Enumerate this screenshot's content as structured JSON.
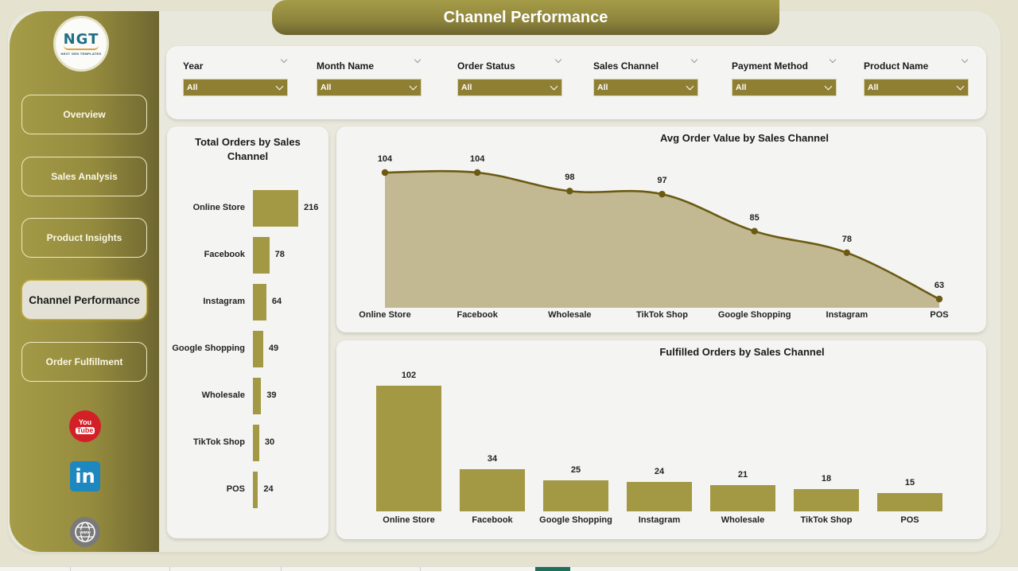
{
  "title": "Channel Performance",
  "logo": {
    "mark": "NGT",
    "tagline": "NEXT GEN TEMPLATES"
  },
  "sidebar": {
    "items": [
      {
        "label": "Overview",
        "active": false
      },
      {
        "label": "Sales Analysis",
        "active": false
      },
      {
        "label": "Product Insights",
        "active": false
      },
      {
        "label": "Channel Performance",
        "active": true
      },
      {
        "label": "Order Fulfillment",
        "active": false
      }
    ],
    "social": [
      {
        "name": "youtube-icon",
        "line1": "You",
        "line2": "Tube"
      },
      {
        "name": "linkedin-icon",
        "text": "in"
      },
      {
        "name": "website-icon",
        "text": "www"
      }
    ]
  },
  "filters": [
    {
      "label": "Year",
      "value": "All"
    },
    {
      "label": "Month Name",
      "value": "All"
    },
    {
      "label": "Order Status",
      "value": "All"
    },
    {
      "label": "Sales Channel",
      "value": "All"
    },
    {
      "label": "Payment Method",
      "value": "All"
    },
    {
      "label": "Product Name",
      "value": "All"
    }
  ],
  "colors": {
    "accent": "#a39844",
    "accent_dark": "#6e6630",
    "line": "#6b5a12",
    "area": "#c2b993",
    "dropdown": "#8f7f32",
    "background": "#e9e8dc",
    "card": "#f4f4f2"
  },
  "chart_data": [
    {
      "type": "bar",
      "orientation": "horizontal",
      "title": "Total Orders by Sales Channel",
      "categories": [
        "Online Store",
        "Facebook",
        "Instagram",
        "Google Shopping",
        "Wholesale",
        "TikTok Shop",
        "POS"
      ],
      "values": [
        216,
        78,
        64,
        49,
        39,
        30,
        24
      ],
      "xlabel": "",
      "ylabel": "",
      "grid": false,
      "legend": false
    },
    {
      "type": "area",
      "title": "Avg Order Value by Sales Channel",
      "categories": [
        "Online Store",
        "Facebook",
        "Wholesale",
        "TikTok Shop",
        "Google Shopping",
        "Instagram",
        "POS"
      ],
      "values": [
        104,
        104,
        98,
        97,
        85,
        78,
        63
      ],
      "xlabel": "",
      "ylabel": "",
      "grid": false,
      "legend": false
    },
    {
      "type": "bar",
      "orientation": "vertical",
      "title": "Fulfilled Orders by Sales Channel",
      "categories": [
        "Online Store",
        "Facebook",
        "Google Shopping",
        "Instagram",
        "Wholesale",
        "TikTok Shop",
        "POS"
      ],
      "values": [
        102,
        34,
        25,
        24,
        21,
        18,
        15
      ],
      "xlabel": "",
      "ylabel": "",
      "grid": false,
      "legend": false
    }
  ]
}
